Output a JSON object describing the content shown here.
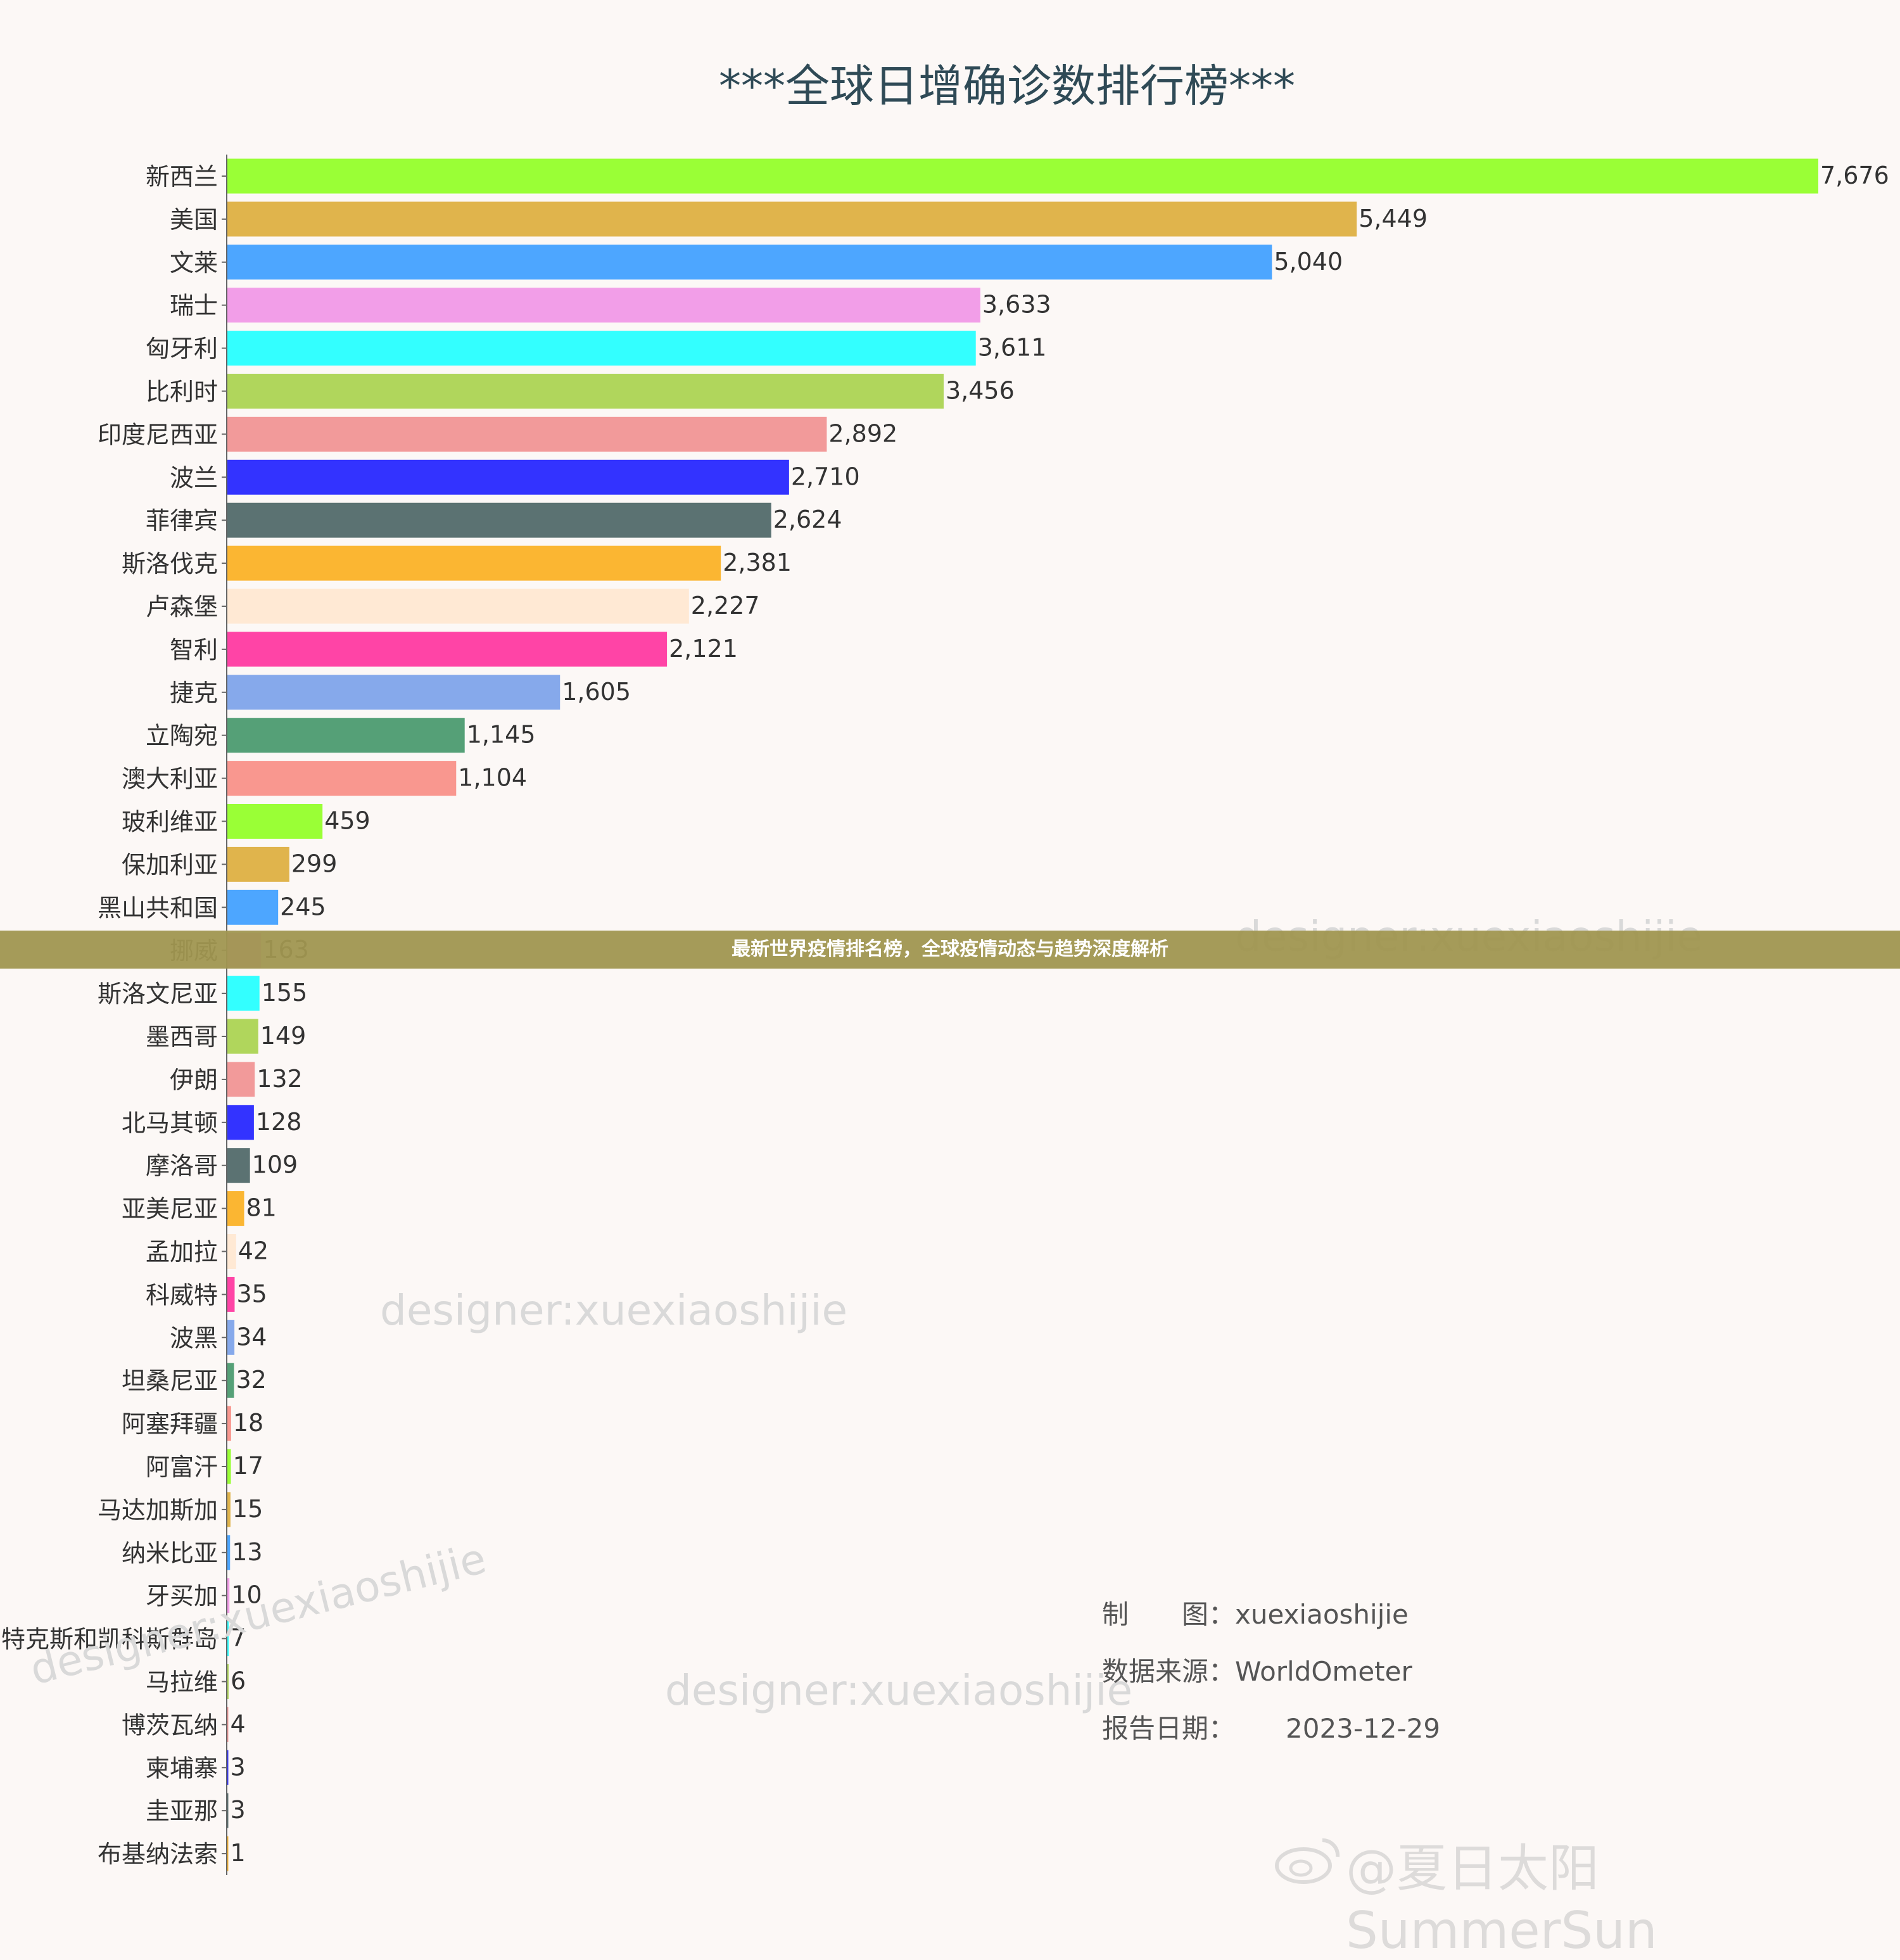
{
  "chart_data": {
    "type": "bar",
    "orientation": "horizontal",
    "title": "***全球日增确诊数排行榜***",
    "categories": [
      "新西兰",
      "美国",
      "文莱",
      "瑞士",
      "匈牙利",
      "比利时",
      "印度尼西亚",
      "波兰",
      "菲律宾",
      "斯洛伐克",
      "卢森堡",
      "智利",
      "捷克",
      "立陶宛",
      "澳大利亚",
      "玻利维亚",
      "保加利亚",
      "黑山共和国",
      "挪威",
      "斯洛文尼亚",
      "墨西哥",
      "伊朗",
      "北马其顿",
      "摩洛哥",
      "亚美尼亚",
      "孟加拉",
      "科威特",
      "波黑",
      "坦桑尼亚",
      "阿塞拜疆",
      "阿富汗",
      "马达加斯加",
      "纳米比亚",
      "牙买加",
      "特克斯和凯科斯群岛",
      "马拉维",
      "博茨瓦纳",
      "柬埔寨",
      "圭亚那",
      "布基纳法索"
    ],
    "values": [
      7676,
      5449,
      5040,
      3633,
      3611,
      3456,
      2892,
      2710,
      2624,
      2381,
      2227,
      2121,
      1605,
      1145,
      1104,
      459,
      299,
      245,
      163,
      155,
      149,
      132,
      128,
      109,
      81,
      42,
      35,
      34,
      32,
      18,
      17,
      15,
      13,
      10,
      7,
      6,
      4,
      3,
      3,
      1
    ],
    "value_labels": [
      "7,676",
      "5,449",
      "5,040",
      "3,633",
      "3,611",
      "3,456",
      "2,892",
      "2,710",
      "2,624",
      "2,381",
      "2,227",
      "2,121",
      "1,605",
      "1,145",
      "1,104",
      "459",
      "299",
      "245",
      "163",
      "155",
      "149",
      "132",
      "128",
      "109",
      "81",
      "42",
      "35",
      "34",
      "32",
      "18",
      "17",
      "15",
      "13",
      "10",
      "7",
      "6",
      "4",
      "3",
      "3",
      "1"
    ],
    "colors": [
      "#9aff36",
      "#e0b44c",
      "#4da6ff",
      "#f29ee8",
      "#33ffff",
      "#b0d65c",
      "#f29a9a",
      "#3333ff",
      "#5b7272",
      "#fbb632",
      "#ffe9d4",
      "#ff44a6",
      "#86a9eb",
      "#55a077",
      "#f9978f"
    ],
    "xlim": [
      0,
      7676
    ],
    "grid": false
  },
  "credits": {
    "maker_key": "制　　图：",
    "maker_value": "xuexiaoshijie",
    "source_key": "数据来源：",
    "source_value": "WorldOmeter",
    "date_key": "报告日期：",
    "date_value": "2023-12-29"
  },
  "watermark": "designer:xuexiaoshijie",
  "banner": "最新世界疫情排名榜，全球疫情动态与趋势深度解析",
  "weibo_handle": "@夏日太阳SummerSun"
}
